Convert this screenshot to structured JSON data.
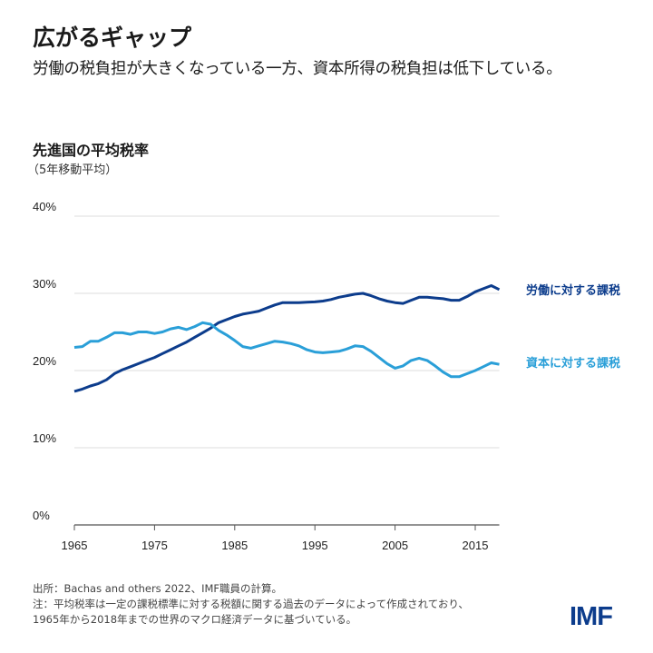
{
  "header": {
    "title": "広がるギャップ",
    "subtitle": "労働の税負担が大きくなっている一方、資本所得の税負担は低下している。"
  },
  "chart_data": {
    "type": "line",
    "title": "先進国の平均税率",
    "subtitle": "（5年移動平均）",
    "x": [
      1965,
      1966,
      1967,
      1968,
      1969,
      1970,
      1971,
      1972,
      1973,
      1974,
      1975,
      1976,
      1977,
      1978,
      1979,
      1980,
      1981,
      1982,
      1983,
      1984,
      1985,
      1986,
      1987,
      1988,
      1989,
      1990,
      1991,
      1992,
      1993,
      1994,
      1995,
      1996,
      1997,
      1998,
      1999,
      2000,
      2001,
      2002,
      2003,
      2004,
      2005,
      2006,
      2007,
      2008,
      2009,
      2010,
      2011,
      2012,
      2013,
      2014,
      2015,
      2016,
      2017,
      2018
    ],
    "series": [
      {
        "name": "労働に対する課税",
        "color": "#0c3c8c",
        "values": [
          17.3,
          17.6,
          18.0,
          18.3,
          18.8,
          19.6,
          20.1,
          20.5,
          20.9,
          21.3,
          21.7,
          22.2,
          22.7,
          23.2,
          23.7,
          24.3,
          24.9,
          25.5,
          26.2,
          26.6,
          27.0,
          27.3,
          27.5,
          27.7,
          28.1,
          28.5,
          28.8,
          28.8,
          28.8,
          28.85,
          28.9,
          29.0,
          29.2,
          29.5,
          29.7,
          29.9,
          30.0,
          29.7,
          29.3,
          29.0,
          28.8,
          28.7,
          29.1,
          29.5,
          29.5,
          29.4,
          29.3,
          29.1,
          29.1,
          29.6,
          30.2,
          30.6,
          31.0,
          30.5
        ]
      },
      {
        "name": "資本に対する課税",
        "color": "#2a9fd8",
        "values": [
          23.0,
          23.1,
          23.8,
          23.8,
          24.3,
          24.9,
          24.9,
          24.7,
          25.0,
          25.0,
          24.8,
          25.0,
          25.4,
          25.6,
          25.3,
          25.7,
          26.2,
          26.0,
          25.2,
          24.6,
          23.9,
          23.1,
          22.9,
          23.2,
          23.5,
          23.8,
          23.7,
          23.5,
          23.2,
          22.7,
          22.4,
          22.3,
          22.4,
          22.5,
          22.8,
          23.2,
          23.1,
          22.5,
          21.7,
          20.9,
          20.3,
          20.6,
          21.3,
          21.6,
          21.3,
          20.6,
          19.8,
          19.2,
          19.2,
          19.6,
          20.0,
          20.5,
          21.0,
          20.8
        ]
      }
    ],
    "xlim": [
      1965,
      2018
    ],
    "ylim": [
      0,
      40
    ],
    "yticks": [
      "0%",
      "10%",
      "20%",
      "30%",
      "40%"
    ],
    "xticks": [
      "1965",
      "1975",
      "1985",
      "1995",
      "2005",
      "2015"
    ],
    "grid": true,
    "legend": "right, inline labels"
  },
  "footer": {
    "source": "出所：Bachas and others 2022、IMF職員の計算。",
    "note1": "注：平均税率は一定の課税標準に対する税額に関する過去のデータによって作成されており、",
    "note2": "1965年から2018年までの世界のマクロ経済データに基づいている。",
    "logo": "IMF"
  }
}
